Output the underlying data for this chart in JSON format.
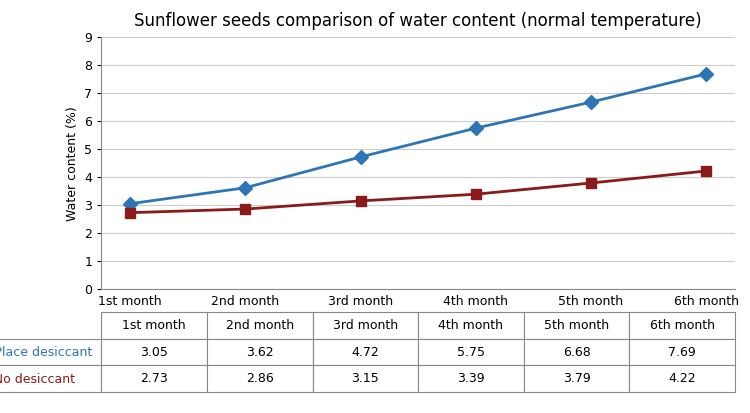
{
  "title": "Sunflower seeds comparison of water content (normal temperature)",
  "ylabel": "Water content (%)",
  "categories": [
    "1st month",
    "2nd month",
    "3rd month",
    "4th month",
    "5th month",
    "6th month"
  ],
  "series": [
    {
      "label": "Place desiccant",
      "values": [
        3.05,
        3.62,
        4.72,
        5.75,
        6.68,
        7.69
      ],
      "color": "#2E75B6",
      "marker": "D",
      "marker_size": 7
    },
    {
      "label": "No desiccant",
      "values": [
        2.73,
        2.86,
        3.15,
        3.39,
        3.79,
        4.22
      ],
      "color": "#8B1A1A",
      "marker": "s",
      "marker_size": 7
    }
  ],
  "ylim": [
    0,
    9
  ],
  "yticks": [
    0,
    1,
    2,
    3,
    4,
    5,
    6,
    7,
    8,
    9
  ],
  "grid_color": "#CCCCCC",
  "background_color": "#FFFFFF",
  "title_fontsize": 12,
  "axis_fontsize": 9,
  "table_fontsize": 9,
  "table_header_bg": "#FFFFFF",
  "table_row_bg": "#FFFFFF",
  "table_border_color": "#888888",
  "line_width": 2.0
}
